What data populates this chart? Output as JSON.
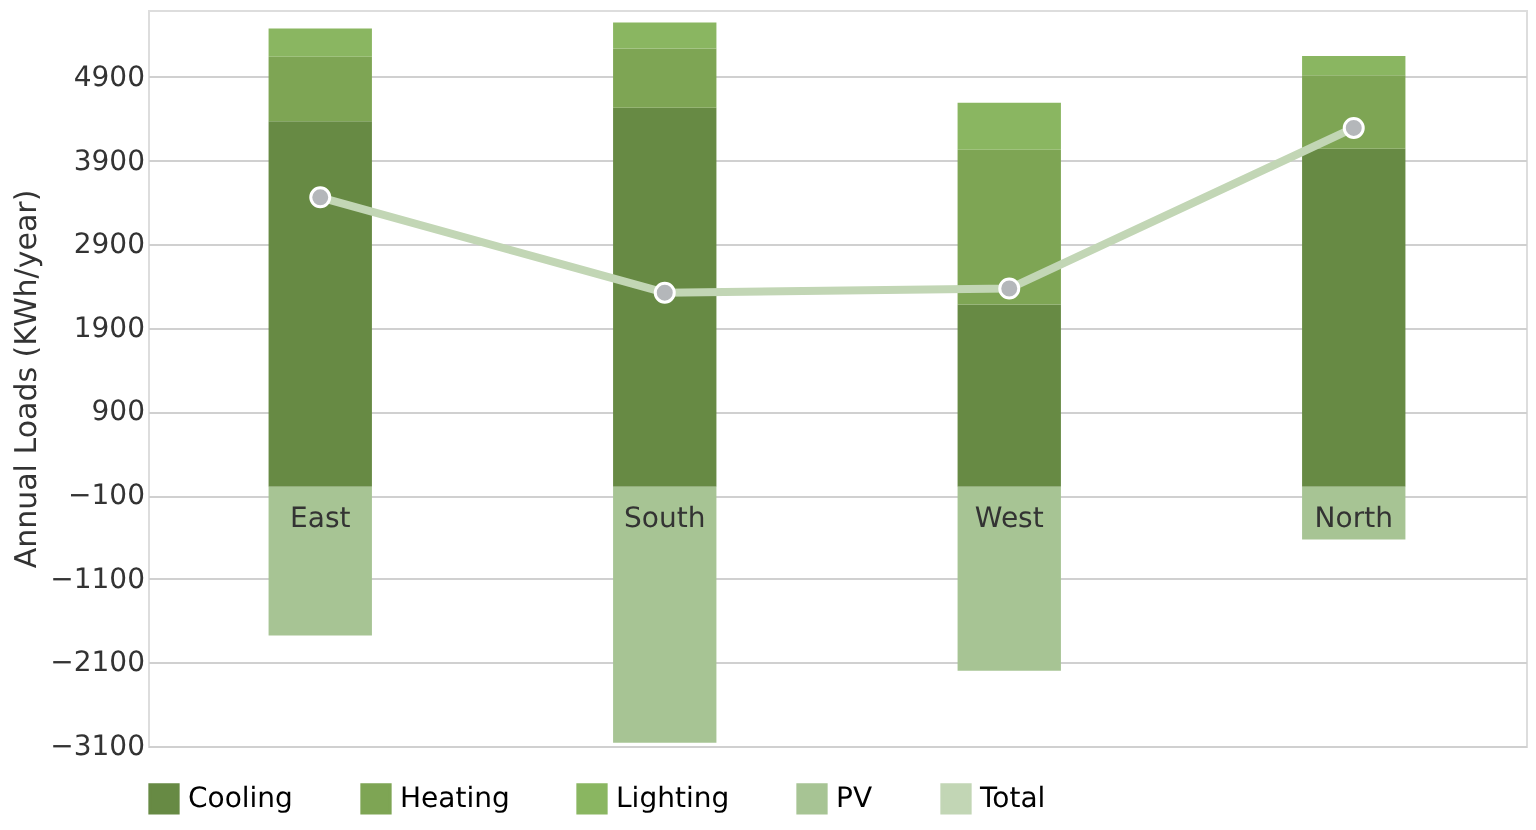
{
  "chart_data": {
    "type": "bar",
    "stacked": true,
    "ylabel": "Annual Loads (KWh/year)",
    "categories": [
      "East",
      "South",
      "West",
      "North"
    ],
    "series": [
      {
        "name": "Cooling",
        "color": "#678a44",
        "values": [
          4370,
          4530,
          2180,
          4040
        ]
      },
      {
        "name": "Heating",
        "color": "#7ea554",
        "values": [
          770,
          710,
          1850,
          880
        ]
      },
      {
        "name": "Lighting",
        "color": "#8ab661",
        "values": [
          340,
          310,
          560,
          230
        ]
      },
      {
        "name": "PV",
        "color": "#a7c494",
        "values": [
          -1780,
          -3060,
          -2200,
          -630
        ]
      },
      {
        "name": "Total",
        "type": "line",
        "color": "#c2d6b5",
        "marker": "circle",
        "values": [
          3460,
          2320,
          2370,
          4290
        ]
      }
    ],
    "ylim": [
      -3100,
      5700
    ],
    "yticks": [
      -3100,
      -2100,
      -1100,
      -100,
      900,
      1900,
      2900,
      3900,
      4900
    ],
    "grid": "y",
    "legend": "bottom"
  }
}
